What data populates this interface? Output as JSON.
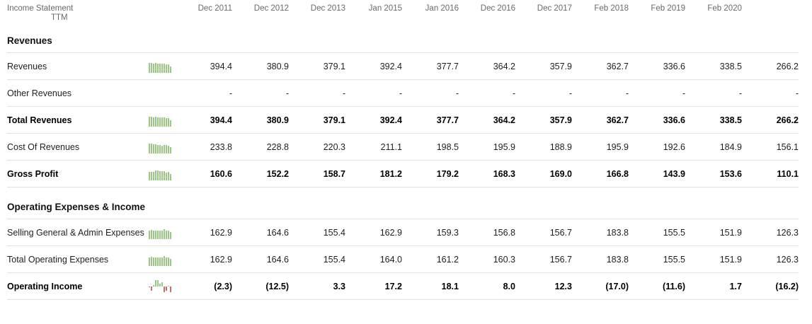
{
  "header": {
    "title_line1": "Income Statement",
    "title_line2": "TTM",
    "columns": [
      "Dec 2011",
      "Dec 2012",
      "Dec 2013",
      "Jan 2015",
      "Jan 2016",
      "Dec 2016",
      "Dec 2017",
      "Feb 2018",
      "Feb 2019",
      "Feb 2020",
      ""
    ]
  },
  "colors": {
    "positive_bar": "#9bc785",
    "negative_bar": "#c4706c",
    "header_text": "#6a6a6e",
    "divider": "#e3e3e3"
  },
  "sections": [
    {
      "title": "Revenues",
      "rows": [
        {
          "label": "Revenues",
          "bold": false,
          "spark": "green",
          "values": [
            "394.4",
            "380.9",
            "379.1",
            "392.4",
            "377.7",
            "364.2",
            "357.9",
            "362.7",
            "336.6",
            "338.5",
            "266.2"
          ]
        },
        {
          "label": "Other Revenues",
          "bold": false,
          "spark": null,
          "values": [
            "-",
            "-",
            "-",
            "-",
            "-",
            "-",
            "-",
            "-",
            "-",
            "-",
            "-"
          ]
        },
        {
          "label": "Total Revenues",
          "bold": true,
          "spark": "green",
          "values": [
            "394.4",
            "380.9",
            "379.1",
            "392.4",
            "377.7",
            "364.2",
            "357.9",
            "362.7",
            "336.6",
            "338.5",
            "266.2"
          ]
        },
        {
          "label": "Cost Of Revenues",
          "bold": false,
          "spark": "green",
          "values": [
            "233.8",
            "228.8",
            "220.3",
            "211.1",
            "198.5",
            "195.9",
            "188.9",
            "195.9",
            "192.6",
            "184.9",
            "156.1"
          ]
        },
        {
          "label": "Gross Profit",
          "bold": true,
          "spark": "green",
          "values": [
            "160.6",
            "152.2",
            "158.7",
            "181.2",
            "179.2",
            "168.3",
            "169.0",
            "166.8",
            "143.9",
            "153.6",
            "110.1"
          ]
        }
      ]
    },
    {
      "title": "Operating Expenses & Income",
      "rows": [
        {
          "label": "Selling General & Admin Expenses",
          "bold": false,
          "spark": "green",
          "values": [
            "162.9",
            "164.6",
            "155.4",
            "162.9",
            "159.3",
            "156.8",
            "156.7",
            "183.8",
            "155.5",
            "151.9",
            "126.3"
          ]
        },
        {
          "label": "Total Operating Expenses",
          "bold": false,
          "spark": "green",
          "values": [
            "162.9",
            "164.6",
            "155.4",
            "164.0",
            "161.2",
            "160.3",
            "156.7",
            "183.8",
            "155.5",
            "151.9",
            "126.3"
          ]
        },
        {
          "label": "Operating Income",
          "bold": true,
          "spark": "posneg",
          "values": [
            "(2.3)",
            "(12.5)",
            "3.3",
            "17.2",
            "18.1",
            "8.0",
            "12.3",
            "(17.0)",
            "(11.6)",
            "1.7",
            "(16.2)"
          ]
        }
      ]
    }
  ]
}
